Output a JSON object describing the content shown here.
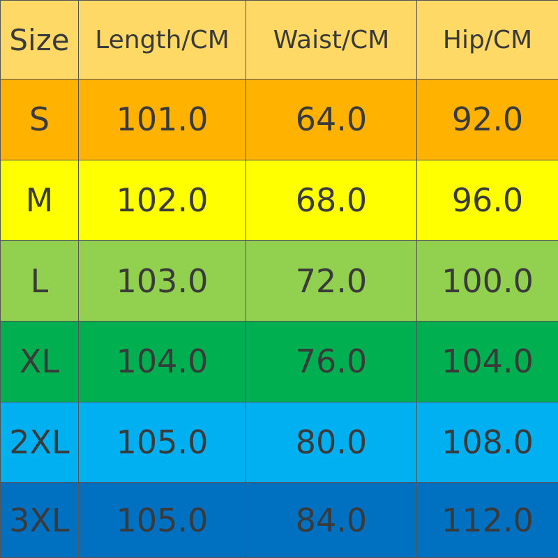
{
  "table": {
    "header": [
      "Size",
      "Length/CM",
      "Waist/CM",
      "Hip/CM"
    ],
    "rows": [
      [
        "S",
        "101.0",
        "64.0",
        "92.0"
      ],
      [
        "M",
        "102.0",
        "68.0",
        "96.0"
      ],
      [
        "L",
        "103.0",
        "72.0",
        "100.0"
      ],
      [
        "XL",
        "104.0",
        "76.0",
        "104.0"
      ],
      [
        "2XL",
        "105.0",
        "80.0",
        "108.0"
      ],
      [
        "3XL",
        "105.0",
        "84.0",
        "112.0"
      ]
    ]
  }
}
